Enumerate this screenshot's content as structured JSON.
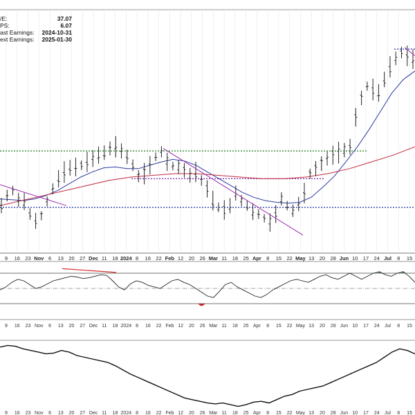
{
  "info": {
    "rows": [
      {
        "label": "/E:",
        "value": "37.07"
      },
      {
        "label": "PS:",
        "value": "6.07"
      },
      {
        "label": "ast Earnings:",
        "value": "2024-10-31"
      },
      {
        "label": "ext Earnings:",
        "value": "2025-01-30"
      }
    ]
  },
  "chart_data": [
    {
      "type": "candlestick",
      "panel": "price",
      "x_ticks": [
        "9",
        "16",
        "23",
        "Nov",
        "6",
        "13",
        "20",
        "27",
        "Dec",
        "11",
        "18",
        "2024",
        "8",
        "16",
        "22",
        "Feb",
        "12",
        "20",
        "26",
        "Mar",
        "11",
        "18",
        "25",
        "Apr",
        "8",
        "15",
        "22",
        "May",
        "13",
        "20",
        "28",
        "Jun",
        "10",
        "17",
        "24",
        "Jul",
        "8",
        "15"
      ],
      "series": [
        {
          "values": [
            0.4,
            0.52,
            0.58,
            0.47,
            0.45,
            0.3,
            0.22,
            0.28,
            0.45,
            0.6,
            0.72,
            0.8,
            0.85,
            0.86,
            0.88,
            0.92,
            0.96,
            1.0,
            1.03,
            1.08,
            1.1,
            1.05,
            0.98,
            0.88,
            0.75,
            0.78,
            0.88,
            0.98,
            1.04,
            0.92,
            0.87,
            0.86,
            0.82,
            0.76,
            0.8,
            0.7,
            0.6,
            0.46,
            0.38,
            0.35,
            0.4,
            0.55,
            0.46,
            0.4,
            0.33,
            0.3,
            0.25,
            0.2,
            0.3,
            0.48,
            0.4,
            0.34,
            0.42,
            0.55,
            0.78,
            0.84,
            0.9,
            0.96,
            1.0,
            1.03,
            1.06,
            1.1,
            1.45,
            1.68,
            1.82,
            1.78,
            1.74,
            1.9,
            2.05,
            2.15,
            2.22,
            2.18,
            2.14
          ]
        },
        {
          "name": "",
          "values": [
            0.48,
            0.47,
            0.46,
            0.48,
            0.52,
            0.58,
            0.66,
            0.74,
            0.8,
            0.85,
            0.86,
            0.84,
            0.84,
            0.88,
            0.92,
            0.95,
            0.93,
            0.88,
            0.8,
            0.72,
            0.64,
            0.56,
            0.5,
            0.46,
            0.44,
            0.43,
            0.44,
            0.5,
            0.62,
            0.75,
            0.92,
            1.1,
            1.3,
            1.52,
            1.74,
            1.9,
            2.0
          ]
        },
        {
          "name": "",
          "values": [
            0.4,
            0.46,
            0.52,
            0.58,
            0.64,
            0.7,
            0.74,
            0.76,
            0.78,
            0.78,
            0.76,
            0.74,
            0.72,
            0.72,
            0.74,
            0.78,
            0.84,
            0.92,
            1.0,
            1.1
          ]
        }
      ],
      "horizontal_levels": [
        {
          "name": "",
          "value": 1.05,
          "color": "#1a7a1a"
        },
        {
          "name": "",
          "value": 0.72,
          "color": "#7a1fa2"
        },
        {
          "name": "",
          "value": 0.38,
          "color": "#2233aa"
        }
      ]
    },
    {
      "type": "line",
      "panel": "oscillator",
      "values": [
        48,
        52,
        58,
        62,
        60,
        55,
        50,
        52,
        56,
        60,
        62,
        64,
        66,
        65,
        63,
        64,
        66,
        68,
        67,
        60,
        52,
        48,
        56,
        60,
        58,
        54,
        52,
        50,
        55,
        60,
        62,
        58,
        55,
        50,
        45,
        40,
        38,
        46,
        55,
        58,
        52,
        48,
        44,
        40,
        38,
        42,
        48,
        52,
        56,
        60,
        62,
        60,
        58,
        62,
        66,
        68,
        64,
        62,
        66,
        70,
        66,
        62,
        66,
        70,
        72,
        68,
        66,
        70,
        72,
        66,
        58
      ]
    },
    {
      "type": "line",
      "panel": "lower",
      "values": [
        92,
        94,
        93,
        90,
        88,
        86,
        84,
        85,
        88,
        86,
        82,
        80,
        78,
        76,
        74,
        70,
        65,
        60,
        56,
        52,
        48,
        44,
        40,
        36,
        32,
        30,
        28,
        26,
        25,
        26,
        24,
        22,
        24,
        27,
        28,
        26,
        30,
        34,
        36,
        40,
        42,
        44,
        46,
        50,
        54,
        58,
        62,
        66,
        70,
        74,
        80,
        86,
        90,
        88,
        84
      ]
    }
  ]
}
